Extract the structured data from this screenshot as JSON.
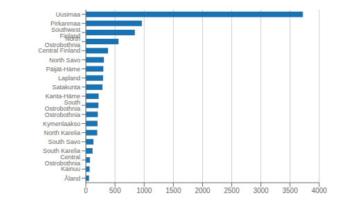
{
  "chart_data": {
    "type": "bar",
    "orientation": "horizontal",
    "categories": [
      "Uusimaa",
      "Pirkanmaa",
      "Southwest Finland",
      "North Ostrobothnia",
      "Central Finland",
      "North Savo",
      "Päijät-Häme",
      "Lapland",
      "Satakunta",
      "Kanta-Häme",
      "South Ostrobothnia",
      "Ostrobothnia",
      "Kymenlaakso",
      "North Karelia",
      "South Savo",
      "South Karelia",
      "Central Ostrobothnia",
      "Kainuu",
      "Åland"
    ],
    "values": [
      3720,
      960,
      840,
      560,
      380,
      310,
      300,
      295,
      285,
      220,
      215,
      205,
      200,
      195,
      130,
      115,
      70,
      65,
      55
    ],
    "color": "#1a72b0",
    "xlim": [
      0,
      4000
    ],
    "xticks": [
      0,
      500,
      1000,
      1500,
      2000,
      2500,
      3000,
      3500,
      4000
    ],
    "grid": true
  }
}
